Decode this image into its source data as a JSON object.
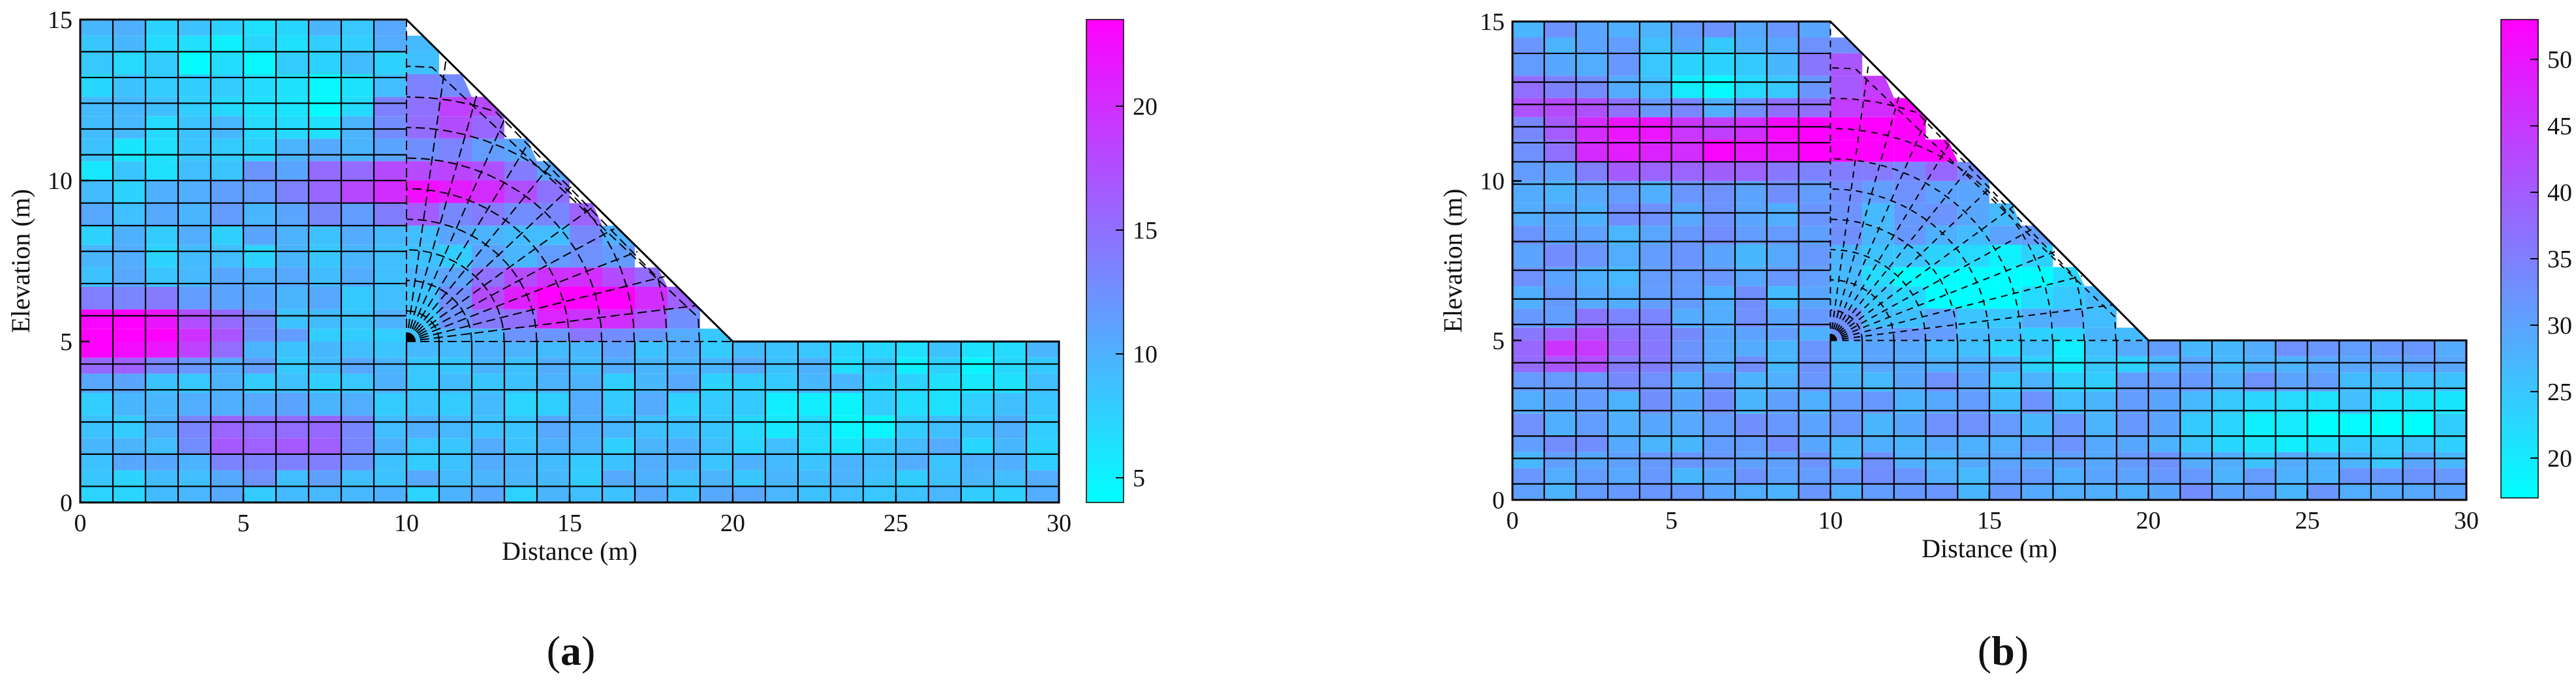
{
  "chart_data": [
    {
      "type": "heatmap",
      "panel_label": "(a)",
      "xlabel": "Distance (m)",
      "ylabel": "Elevation (m)",
      "xlim": [
        0,
        30
      ],
      "ylim": [
        0,
        15
      ],
      "x_ticks": [
        0,
        5,
        10,
        15,
        20,
        25,
        30
      ],
      "y_ticks": [
        0,
        5,
        10,
        15
      ],
      "colorbar": {
        "min": 4,
        "max": 23.5,
        "ticks": [
          5,
          10,
          15,
          20
        ]
      },
      "colormap": [
        "#00ffff",
        "#ff00ff"
      ],
      "slope_geometry": [
        [
          0,
          0
        ],
        [
          30,
          0
        ],
        [
          30,
          5
        ],
        [
          20,
          5
        ],
        [
          10,
          15
        ],
        [
          0,
          15
        ]
      ],
      "field": {
        "base_level": 9,
        "high_zones": [
          {
            "x": 0.5,
            "y": 5.2,
            "value": 22
          },
          {
            "x": 2.5,
            "y": 5.3,
            "value": 19
          },
          {
            "x": 11,
            "y": 9.8,
            "value": 23
          },
          {
            "x": 11.8,
            "y": 12.2,
            "value": 19
          },
          {
            "x": 14.5,
            "y": 6.4,
            "value": 21
          },
          {
            "x": 16.5,
            "y": 6.2,
            "value": 19
          },
          {
            "x": 6,
            "y": 1.9,
            "value": 18
          },
          {
            "x": 7,
            "y": 9.7,
            "value": 14
          },
          {
            "x": 16.5,
            "y": 9.2,
            "value": 16
          }
        ],
        "low_zones": [
          {
            "x": 4,
            "y": 13.8,
            "value": 5
          },
          {
            "x": 7,
            "y": 12.5,
            "value": 5
          },
          {
            "x": 23,
            "y": 2.5,
            "value": 5
          },
          {
            "x": 27,
            "y": 4.2,
            "value": 6
          },
          {
            "x": 2,
            "y": 10.8,
            "value": 6
          }
        ]
      }
    },
    {
      "type": "heatmap",
      "panel_label": "(b)",
      "xlabel": "Distance (m)",
      "ylabel": "Elevation (m)",
      "xlim": [
        0,
        30
      ],
      "ylim": [
        0,
        15
      ],
      "x_ticks": [
        0,
        5,
        10,
        15,
        20,
        25,
        30
      ],
      "y_ticks": [
        0,
        5,
        10,
        15
      ],
      "colorbar": {
        "min": 17,
        "max": 53,
        "ticks": [
          20,
          25,
          30,
          35,
          40,
          45,
          50
        ]
      },
      "colormap": [
        "#00ffff",
        "#ff00ff"
      ],
      "slope_geometry": [
        [
          0,
          0
        ],
        [
          30,
          0
        ],
        [
          30,
          5
        ],
        [
          20,
          5
        ],
        [
          10,
          15
        ],
        [
          0,
          15
        ]
      ],
      "field": {
        "base_level": 30,
        "high_zones": [
          {
            "x": 4,
            "y": 11.2,
            "value": 50
          },
          {
            "x": 8,
            "y": 11.2,
            "value": 47
          },
          {
            "x": 11.5,
            "y": 11.5,
            "value": 50
          },
          {
            "x": 13,
            "y": 11.5,
            "value": 52
          },
          {
            "x": 12,
            "y": 13.5,
            "value": 45
          },
          {
            "x": 2,
            "y": 4.7,
            "value": 43
          },
          {
            "x": 1,
            "y": 12.5,
            "value": 40
          }
        ],
        "low_zones": [
          {
            "x": 6.5,
            "y": 13.2,
            "value": 18
          },
          {
            "x": 13.5,
            "y": 6.8,
            "value": 18
          },
          {
            "x": 16.5,
            "y": 7,
            "value": 19
          },
          {
            "x": 24.5,
            "y": 2.2,
            "value": 19
          },
          {
            "x": 28.5,
            "y": 2.5,
            "value": 20
          },
          {
            "x": 17.5,
            "y": 4.5,
            "value": 22
          }
        ]
      }
    }
  ]
}
